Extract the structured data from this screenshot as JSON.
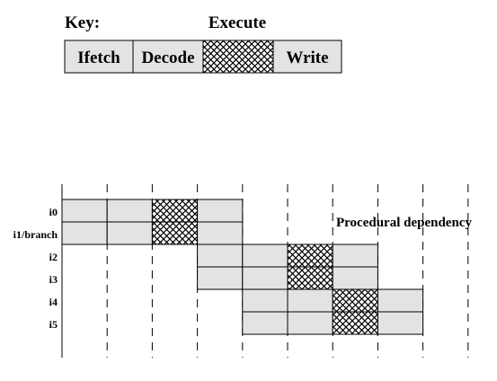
{
  "key": {
    "title": "Key:",
    "execute_label": "Execute",
    "stages": [
      "Ifetch",
      "Decode",
      "Execute",
      "Write"
    ]
  },
  "instructions": [
    "i0",
    "i1/branch",
    "i2",
    "i3",
    "i4",
    "i5"
  ],
  "start_cycles": [
    0,
    0,
    3,
    3,
    4,
    4
  ],
  "annotation": "Procedural dependency",
  "colors": {
    "stage_fill": "#e3e3e3",
    "stroke": "#000000",
    "hatch": "#000000"
  }
}
